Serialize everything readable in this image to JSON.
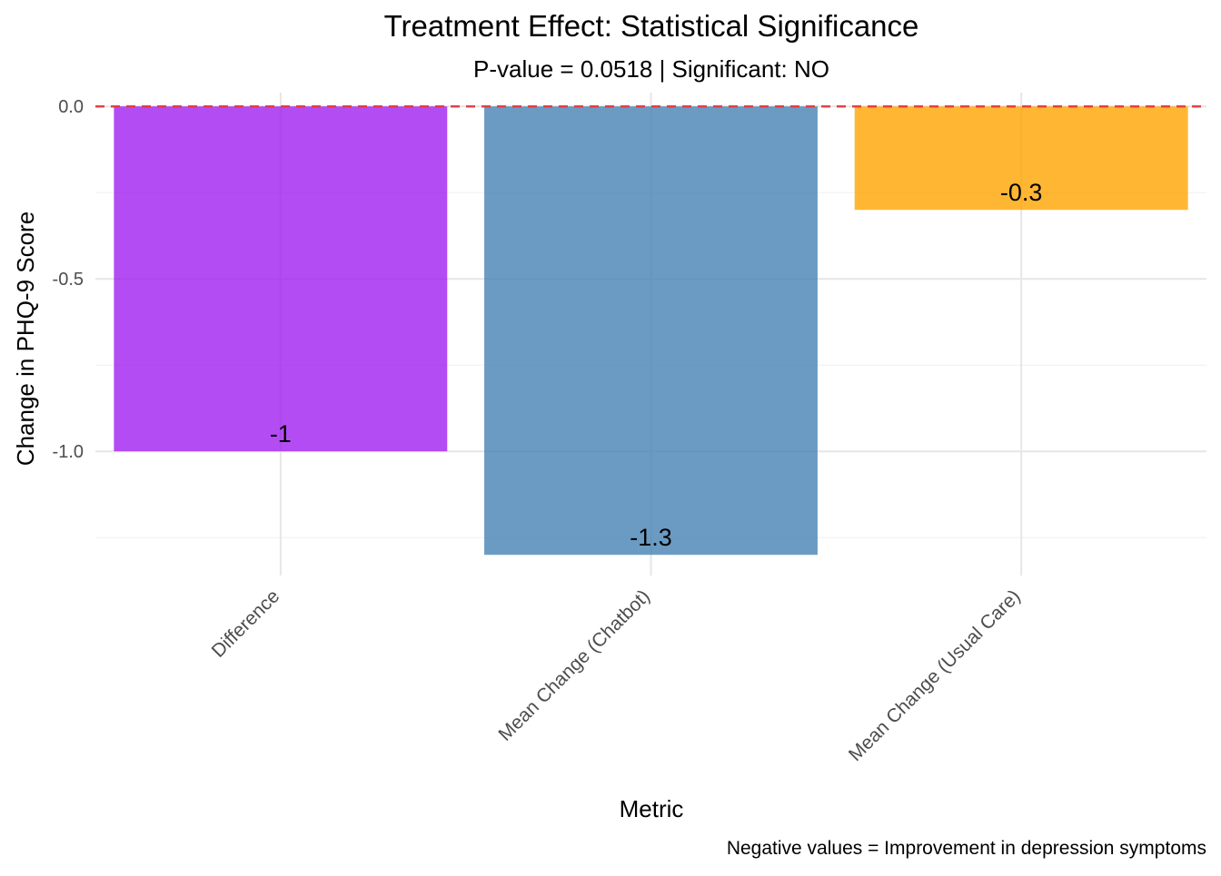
{
  "chart_data": {
    "type": "bar",
    "title": "Treatment Effect: Statistical Significance",
    "subtitle": "P-value = 0.0518 | Significant: NO",
    "xlabel": "Metric",
    "ylabel": "Change in PHQ-9 Score",
    "caption": "Negative values = Improvement in depression symptoms",
    "categories": [
      "Difference",
      "Mean Change (Chatbot)",
      "Mean Change (Usual Care)"
    ],
    "values": [
      -1.0,
      -1.3,
      -0.3
    ],
    "data_labels": [
      "-1",
      "-1.3",
      "-0.3"
    ],
    "colors": [
      "#A020F0",
      "#4682B4",
      "#FFA500"
    ],
    "bar_opacity": 0.8,
    "ylim": [
      -1.36,
      0.04
    ],
    "yticks": [
      0.0,
      -0.5,
      -1.0
    ],
    "ytick_labels": [
      "0.0",
      "-0.5",
      "-1.0"
    ],
    "minor_yticks": [
      -0.25,
      -0.75,
      -1.25
    ],
    "reference_line": {
      "y": 0,
      "color": "#E8383D",
      "style": "dashed"
    },
    "grid": true,
    "legend": "none"
  }
}
